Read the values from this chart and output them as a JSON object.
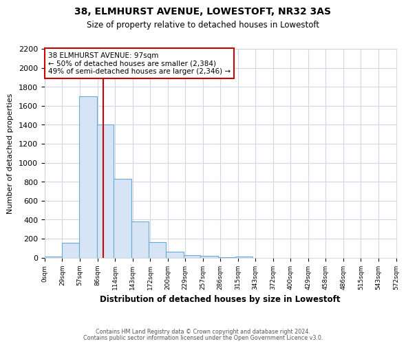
{
  "title": "38, ELMHURST AVENUE, LOWESTOFT, NR32 3AS",
  "subtitle": "Size of property relative to detached houses in Lowestoft",
  "xlabel": "Distribution of detached houses by size in Lowestoft",
  "ylabel": "Number of detached properties",
  "bar_values": [
    10,
    155,
    1700,
    1400,
    830,
    380,
    160,
    65,
    25,
    20,
    5,
    10
  ],
  "bin_edges": [
    0,
    29,
    57,
    86,
    114,
    143,
    172,
    200,
    229,
    257,
    286,
    315,
    343
  ],
  "tick_labels": [
    "0sqm",
    "29sqm",
    "57sqm",
    "86sqm",
    "114sqm",
    "143sqm",
    "172sqm",
    "200sqm",
    "229sqm",
    "257sqm",
    "286sqm",
    "315sqm",
    "343sqm",
    "372sqm",
    "400sqm",
    "429sqm",
    "458sqm",
    "486sqm",
    "515sqm",
    "543sqm",
    "572sqm"
  ],
  "bar_color": "#d6e4f5",
  "bar_edge_color": "#6aaad4",
  "vline_x": 97,
  "vline_color": "#cc0000",
  "annotation_title": "38 ELMHURST AVENUE: 97sqm",
  "annotation_line1": "← 50% of detached houses are smaller (2,384)",
  "annotation_line2": "49% of semi-detached houses are larger (2,346) →",
  "annotation_box_facecolor": "white",
  "annotation_box_edgecolor": "#cc0000",
  "ylim": [
    0,
    2200
  ],
  "xlim_min": 0,
  "xlim_max": 572,
  "yticks": [
    0,
    200,
    400,
    600,
    800,
    1000,
    1200,
    1400,
    1600,
    1800,
    2000,
    2200
  ],
  "footer1": "Contains HM Land Registry data © Crown copyright and database right 2024.",
  "footer2": "Contains public sector information licensed under the Open Government Licence v3.0.",
  "bg_color": "#ffffff",
  "plot_bg_color": "#ffffff",
  "grid_color": "#d0d8e8"
}
